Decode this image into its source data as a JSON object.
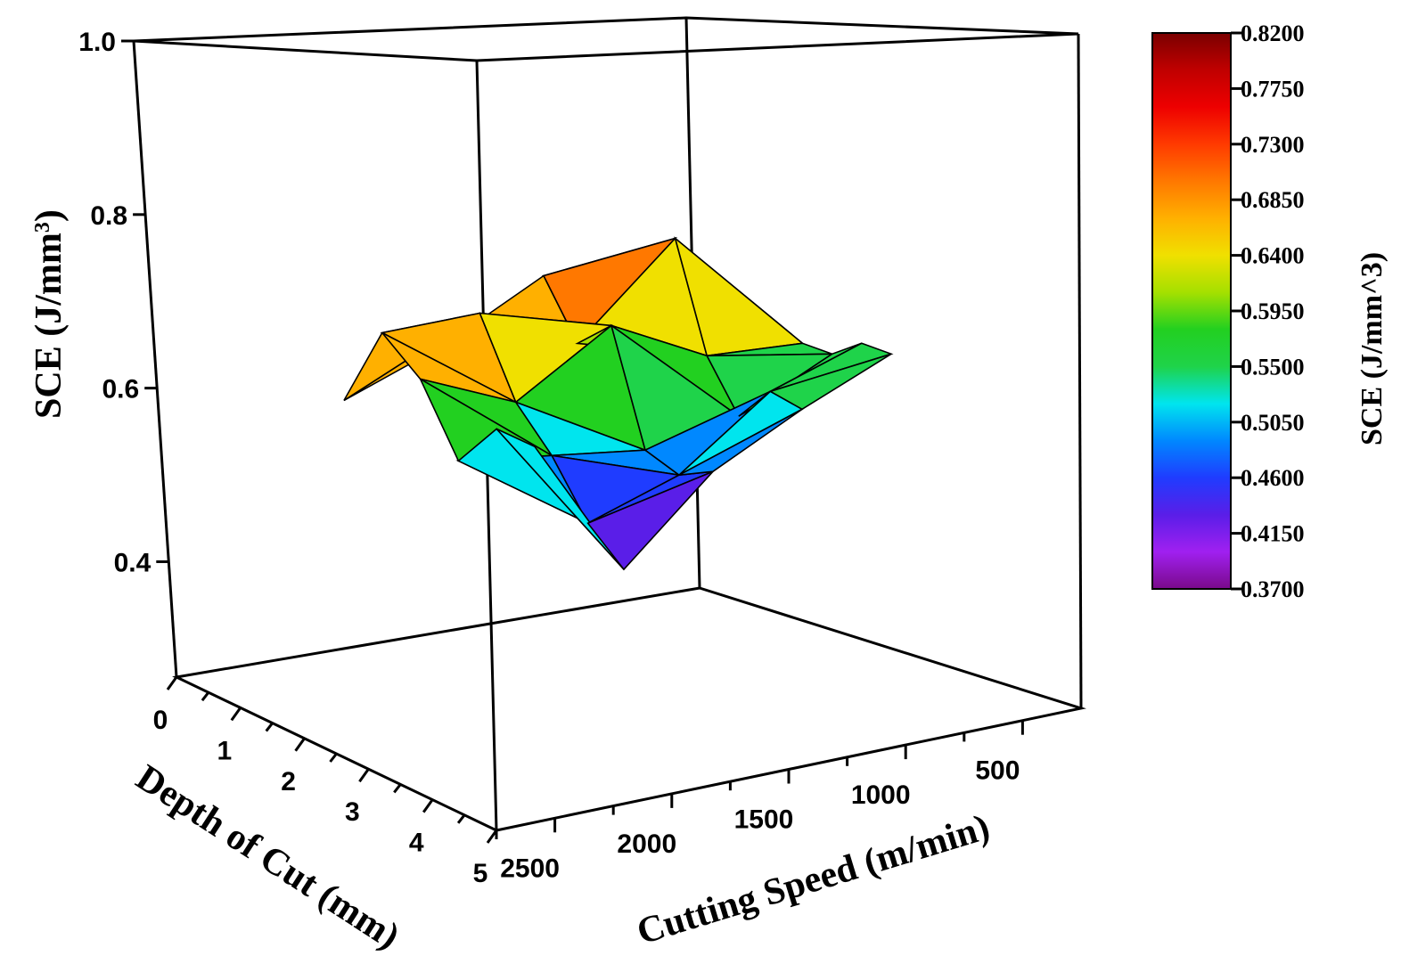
{
  "chart_data": {
    "type": "surface3d",
    "z_axis": {
      "label": "SCE (J/mm",
      "label_superscript": "3",
      "label_suffix": ")",
      "ticks": [
        "0.4",
        "0.6",
        "0.8",
        "1.0"
      ],
      "range": [
        0.3,
        1.0
      ]
    },
    "x_axis": {
      "label": "Depth of Cut (mm)",
      "ticks": [
        "0",
        "1",
        "2",
        "3",
        "4",
        "5"
      ],
      "range": [
        0,
        5
      ]
    },
    "y_axis": {
      "label": "Cutting Speed (m/min)",
      "ticks": [
        "500",
        "1000",
        "1500",
        "2000",
        "2500"
      ],
      "range": [
        250,
        2750
      ]
    },
    "colorbar": {
      "title": "SCE (J/mm^3)",
      "ticks": [
        "0.8200",
        "0.7750",
        "0.7300",
        "0.6850",
        "0.6400",
        "0.5950",
        "0.5500",
        "0.5050",
        "0.4600",
        "0.4150",
        "0.3700"
      ],
      "min": 0.37,
      "max": 0.82,
      "colors": [
        "#7a0a8a",
        "#a020f0",
        "#5a1ee8",
        "#1f3cff",
        "#0088ff",
        "#00e5ee",
        "#1fd34a",
        "#22d020",
        "#a5e000",
        "#f0e000",
        "#ffb000",
        "#ff7800",
        "#ff3a00",
        "#ee0000",
        "#c00000",
        "#7a0000"
      ]
    },
    "surface_samples": [
      {
        "depth": 0,
        "speed": 500,
        "sce": 0.57
      },
      {
        "depth": 0,
        "speed": 1000,
        "sce": 0.61
      },
      {
        "depth": 0,
        "speed": 1500,
        "sce": 0.72
      },
      {
        "depth": 0,
        "speed": 2000,
        "sce": 0.66
      },
      {
        "depth": 0,
        "speed": 2500,
        "sce": 0.62
      },
      {
        "depth": 1,
        "speed": 500,
        "sce": 0.58
      },
      {
        "depth": 1,
        "speed": 1000,
        "sce": 0.74
      },
      {
        "depth": 1,
        "speed": 1500,
        "sce": 0.63
      },
      {
        "depth": 1,
        "speed": 2000,
        "sce": 0.71
      },
      {
        "depth": 1,
        "speed": 2500,
        "sce": 0.72
      },
      {
        "depth": 2,
        "speed": 500,
        "sce": 0.56
      },
      {
        "depth": 2,
        "speed": 1000,
        "sce": 0.58
      },
      {
        "depth": 2,
        "speed": 1500,
        "sce": 0.66
      },
      {
        "depth": 2,
        "speed": 2000,
        "sce": 0.59
      },
      {
        "depth": 2,
        "speed": 2500,
        "sce": 0.66
      },
      {
        "depth": 3,
        "speed": 500,
        "sce": 0.55
      },
      {
        "depth": 3,
        "speed": 1000,
        "sce": 0.5
      },
      {
        "depth": 3,
        "speed": 1500,
        "sce": 0.49
      },
      {
        "depth": 3,
        "speed": 2000,
        "sce": 0.52
      },
      {
        "depth": 3,
        "speed": 2500,
        "sce": 0.55
      },
      {
        "depth": 4,
        "speed": 500,
        "sce": 0.57
      },
      {
        "depth": 4,
        "speed": 1000,
        "sce": 0.54
      },
      {
        "depth": 4,
        "speed": 1500,
        "sce": 0.46
      },
      {
        "depth": 4,
        "speed": 2000,
        "sce": 0.43
      },
      {
        "depth": 4,
        "speed": 2500,
        "sce": 0.6
      },
      {
        "depth": 5,
        "speed": 500,
        "sce": 0.56
      },
      {
        "depth": 5,
        "speed": 1000,
        "sce": 0.52
      },
      {
        "depth": 5,
        "speed": 1500,
        "sce": 0.47
      },
      {
        "depth": 5,
        "speed": 2000,
        "sce": 0.37
      },
      {
        "depth": 5,
        "speed": 2500,
        "sce": 0.58
      }
    ]
  }
}
